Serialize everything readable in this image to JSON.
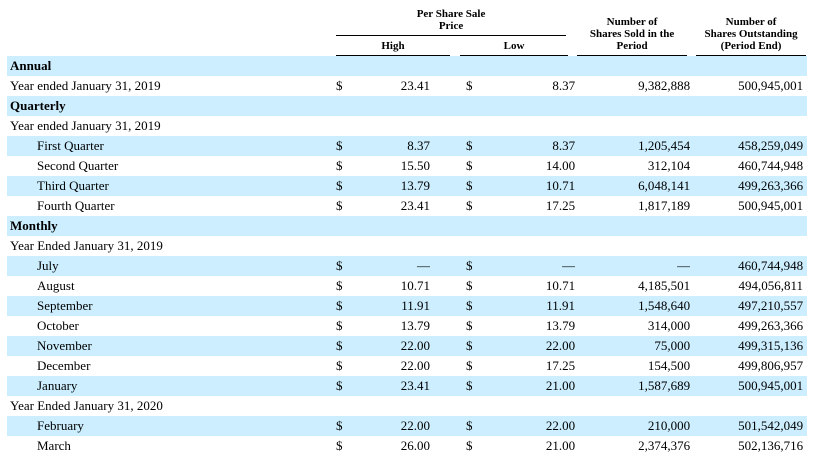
{
  "table": {
    "currency_symbol": "$",
    "colors": {
      "row_highlight": "#cceeff",
      "text": "#000000",
      "rule": "#000000"
    },
    "header": {
      "per_share_group": "Per Share Sale\nPrice",
      "high": "High",
      "low": "Low",
      "shares_sold": "Number of\nShares Sold in the\nPeriod",
      "shares_outstanding": "Number of\nShares Outstanding\n(Period End)"
    },
    "rows": [
      {
        "type": "section",
        "indent": 0,
        "label": "Annual"
      },
      {
        "type": "data",
        "indent": 0,
        "label": "Year ended January 31, 2019",
        "high": "23.41",
        "low": "8.37",
        "sold": "9,382,888",
        "outstanding": "500,945,001"
      },
      {
        "type": "section",
        "indent": 0,
        "label": "Quarterly"
      },
      {
        "type": "label",
        "indent": 0,
        "label": "Year ended January 31, 2019"
      },
      {
        "type": "data",
        "indent": 1,
        "label": "First Quarter",
        "high": "8.37",
        "low": "8.37",
        "sold": "1,205,454",
        "outstanding": "458,259,049"
      },
      {
        "type": "data",
        "indent": 1,
        "label": "Second Quarter",
        "high": "15.50",
        "low": "14.00",
        "sold": "312,104",
        "outstanding": "460,744,948"
      },
      {
        "type": "data",
        "indent": 1,
        "label": "Third Quarter",
        "high": "13.79",
        "low": "10.71",
        "sold": "6,048,141",
        "outstanding": "499,263,366"
      },
      {
        "type": "data",
        "indent": 1,
        "label": "Fourth Quarter",
        "high": "23.41",
        "low": "17.25",
        "sold": "1,817,189",
        "outstanding": "500,945,001"
      },
      {
        "type": "section",
        "indent": 0,
        "label": "Monthly"
      },
      {
        "type": "label",
        "indent": 0,
        "label": "Year Ended January 31, 2019"
      },
      {
        "type": "data",
        "indent": 1,
        "label": "July",
        "high": "—",
        "low": "—",
        "sold": "—",
        "outstanding": "460,744,948"
      },
      {
        "type": "data",
        "indent": 1,
        "label": "August",
        "high": "10.71",
        "low": "10.71",
        "sold": "4,185,501",
        "outstanding": "494,056,811"
      },
      {
        "type": "data",
        "indent": 1,
        "label": "September",
        "high": "11.91",
        "low": "11.91",
        "sold": "1,548,640",
        "outstanding": "497,210,557"
      },
      {
        "type": "data",
        "indent": 1,
        "label": "October",
        "high": "13.79",
        "low": "13.79",
        "sold": "314,000",
        "outstanding": "499,263,366"
      },
      {
        "type": "data",
        "indent": 1,
        "label": "November",
        "high": "22.00",
        "low": "22.00",
        "sold": "75,000",
        "outstanding": "499,315,136"
      },
      {
        "type": "data",
        "indent": 1,
        "label": "December",
        "high": "22.00",
        "low": "17.25",
        "sold": "154,500",
        "outstanding": "499,806,957"
      },
      {
        "type": "data",
        "indent": 1,
        "label": "January",
        "high": "23.41",
        "low": "21.00",
        "sold": "1,587,689",
        "outstanding": "500,945,001"
      },
      {
        "type": "label",
        "indent": 0,
        "label": "Year Ended January 31, 2020"
      },
      {
        "type": "data",
        "indent": 1,
        "label": "February",
        "high": "22.00",
        "low": "22.00",
        "sold": "210,000",
        "outstanding": "501,542,049"
      },
      {
        "type": "data",
        "indent": 1,
        "label": "March",
        "high": "26.00",
        "low": "21.00",
        "sold": "2,374,376",
        "outstanding": "502,136,716"
      }
    ]
  }
}
